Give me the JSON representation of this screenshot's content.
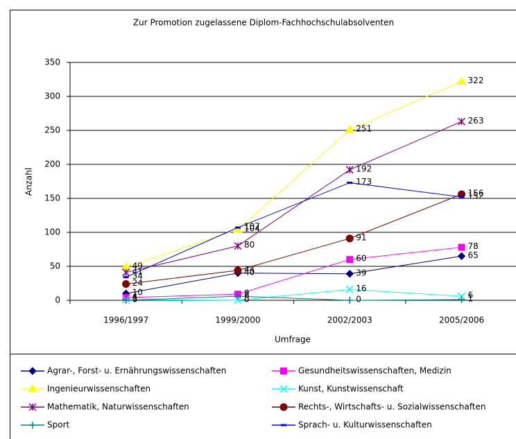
{
  "chart_data": {
    "type": "line",
    "title": "Zur Promotion zugelassene Diplom-Fachhochschulabsolventen",
    "x_label": "Umfrage",
    "y_label": "Anzahl",
    "categories": [
      "1996/1997",
      "1999/2000",
      "2002/2003",
      "2005/2006"
    ],
    "ylim": [
      0,
      350
    ],
    "yticks": [
      0,
      50,
      100,
      150,
      200,
      250,
      300,
      350
    ],
    "grid": true,
    "series": [
      {
        "name": "Agrar-, Forst- u. Ernährungswissenschaften",
        "color": "#000080",
        "marker": "diamond",
        "values": [
          10,
          40,
          39,
          65
        ]
      },
      {
        "name": "Gesundheitswissenschaften, Medizin",
        "color": "#ff00ff",
        "marker": "square",
        "values": [
          4,
          9,
          60,
          78
        ]
      },
      {
        "name": "Ingenieurwissenschaften",
        "color": "#ffff00",
        "marker": "triangle",
        "values": [
          49,
          104,
          251,
          322
        ]
      },
      {
        "name": "Kunst, Kunstwissenschaft",
        "color": "#00ffff",
        "marker": "x",
        "values": [
          1,
          0,
          16,
          6
        ]
      },
      {
        "name": "Mathematik, Naturwissenschaften",
        "color": "#800080",
        "marker": "asterisk",
        "values": [
          41,
          80,
          192,
          263
        ]
      },
      {
        "name": "Rechts-, Wirtschafts- u. Sozialwissenschaften",
        "color": "#800000",
        "marker": "circle",
        "values": [
          24,
          44,
          91,
          156
        ]
      },
      {
        "name": "Sport",
        "color": "#008080",
        "marker": "plus",
        "values": [
          0,
          6,
          0,
          1
        ]
      },
      {
        "name": "Sprach- u. Kulturwissenschaften",
        "color": "#0000ff",
        "marker": "dash",
        "values": [
          34,
          107,
          173,
          152
        ]
      }
    ]
  }
}
